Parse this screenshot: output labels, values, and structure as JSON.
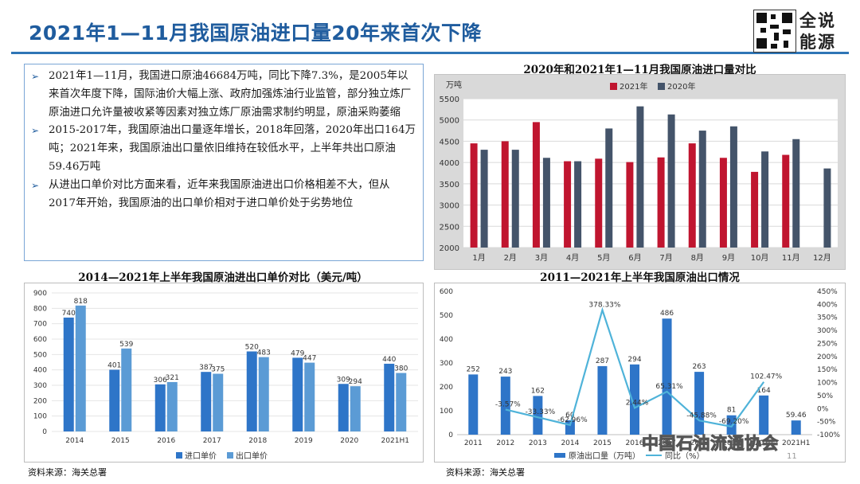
{
  "slide": {
    "title": "2021年1—11月我国原油进口量20年来首次下降",
    "brand": "全说能源",
    "page_number": "11",
    "watermark_logo": "中国石油流通协会"
  },
  "bullets": [
    "2021年1—11月，我国进口原油46684万吨，同比下降7.3%，是2005年以来首次年度下降，国际油价大幅上涨、政府加强炼油行业监管，部分独立炼厂原油进口允许量被收紧等因素对独立炼厂原油需求制约明显，原油采购萎缩",
    "2015-2017年，我国原油出口量逐年增长，2018年回落，2020年出口164万吨；2021年来，我国原油出口量依旧维持在较低水平，上半年共出口原油59.46万吨",
    "从进出口单价对比方面来看，近年来我国原油进出口价格相差不大，但从2017年开始，我国原油的出口单价相对于进口单价处于劣势地位"
  ],
  "sources": {
    "left": "资料来源：海关总署",
    "right": "资料来源：海关总署"
  },
  "chart_data": [
    {
      "type": "bar",
      "title": "2020年和2021年1—11月我国原油进口量对比",
      "ylabel": "万吨",
      "categories": [
        "1月",
        "2月",
        "3月",
        "4月",
        "5月",
        "6月",
        "7月",
        "8月",
        "9月",
        "10月",
        "11月",
        "12月"
      ],
      "ylim": [
        2000,
        5500
      ],
      "yticks": [
        2000,
        2500,
        3000,
        3500,
        4000,
        4500,
        5000,
        5500
      ],
      "legend_position": "top-left",
      "grid": true,
      "colors": {
        "2021年": "#c0152f",
        "2020年": "#44546a"
      },
      "series": [
        {
          "name": "2021年",
          "values": [
            4450,
            4500,
            4950,
            4030,
            4090,
            4010,
            4120,
            4450,
            4110,
            3780,
            4180,
            null
          ]
        },
        {
          "name": "2020年",
          "values": [
            4300,
            4300,
            4110,
            4030,
            4800,
            5320,
            5130,
            4750,
            4850,
            4260,
            4550,
            3860
          ]
        }
      ]
    },
    {
      "type": "bar",
      "title": "2014—2021年上半年我国原油进出口单价对比（美元/吨）",
      "categories": [
        "2014",
        "2015",
        "2016",
        "2017",
        "2018",
        "2019",
        "2020",
        "2021H1"
      ],
      "ylim": [
        0,
        900
      ],
      "yticks": [
        0,
        100,
        200,
        300,
        400,
        500,
        600,
        700,
        800,
        900
      ],
      "legend_position": "bottom",
      "grid": true,
      "colors": {
        "进口单价": "#2e75c8",
        "出口单价": "#5b9bd5"
      },
      "series": [
        {
          "name": "进口单价",
          "values": [
            740,
            401,
            306,
            387,
            520,
            479,
            309,
            440
          ]
        },
        {
          "name": "出口单价",
          "values": [
            818,
            539,
            321,
            375,
            483,
            447,
            294,
            380
          ]
        }
      ]
    },
    {
      "type": "bar",
      "title": "2011—2021年上半年我国原油出口情况",
      "categories": [
        "2011",
        "2012",
        "2013",
        "2014",
        "2015",
        "2016",
        "2017",
        "2018",
        "2019",
        "2020",
        "2021H1"
      ],
      "ylim": [
        0,
        600
      ],
      "yticks": [
        0,
        100,
        200,
        300,
        400,
        500,
        600
      ],
      "y2lim": [
        -100,
        450
      ],
      "y2ticks": [
        "-100%",
        "-50%",
        "0%",
        "50%",
        "100%",
        "150%",
        "200%",
        "250%",
        "300%",
        "350%",
        "400%",
        "450%"
      ],
      "legend_position": "bottom",
      "colors": {
        "bar": "#2e75c8",
        "line": "#4fb3d9"
      },
      "series": [
        {
          "name": "原油出口量（万吨）",
          "values": [
            252,
            243,
            162,
            60,
            287,
            294,
            486,
            263,
            81,
            164,
            59.46
          ]
        },
        {
          "name": "同比（%）",
          "values": [
            null,
            -3.57,
            -33.33,
            -62.96,
            378.33,
            2.44,
            65.31,
            -45.88,
            -69.2,
            102.47,
            null
          ]
        }
      ],
      "bar_labels": [
        "252",
        "243",
        "162",
        "60",
        "287",
        "294",
        "486",
        "263",
        "81",
        "164",
        "59.46"
      ],
      "line_labels": [
        "",
        "-3.57%",
        "-33.33%",
        "-62.96%",
        "378.33%",
        "2.44%",
        "65.31%",
        "-45.88%",
        "-69.20%",
        "102.47%",
        ""
      ]
    }
  ]
}
